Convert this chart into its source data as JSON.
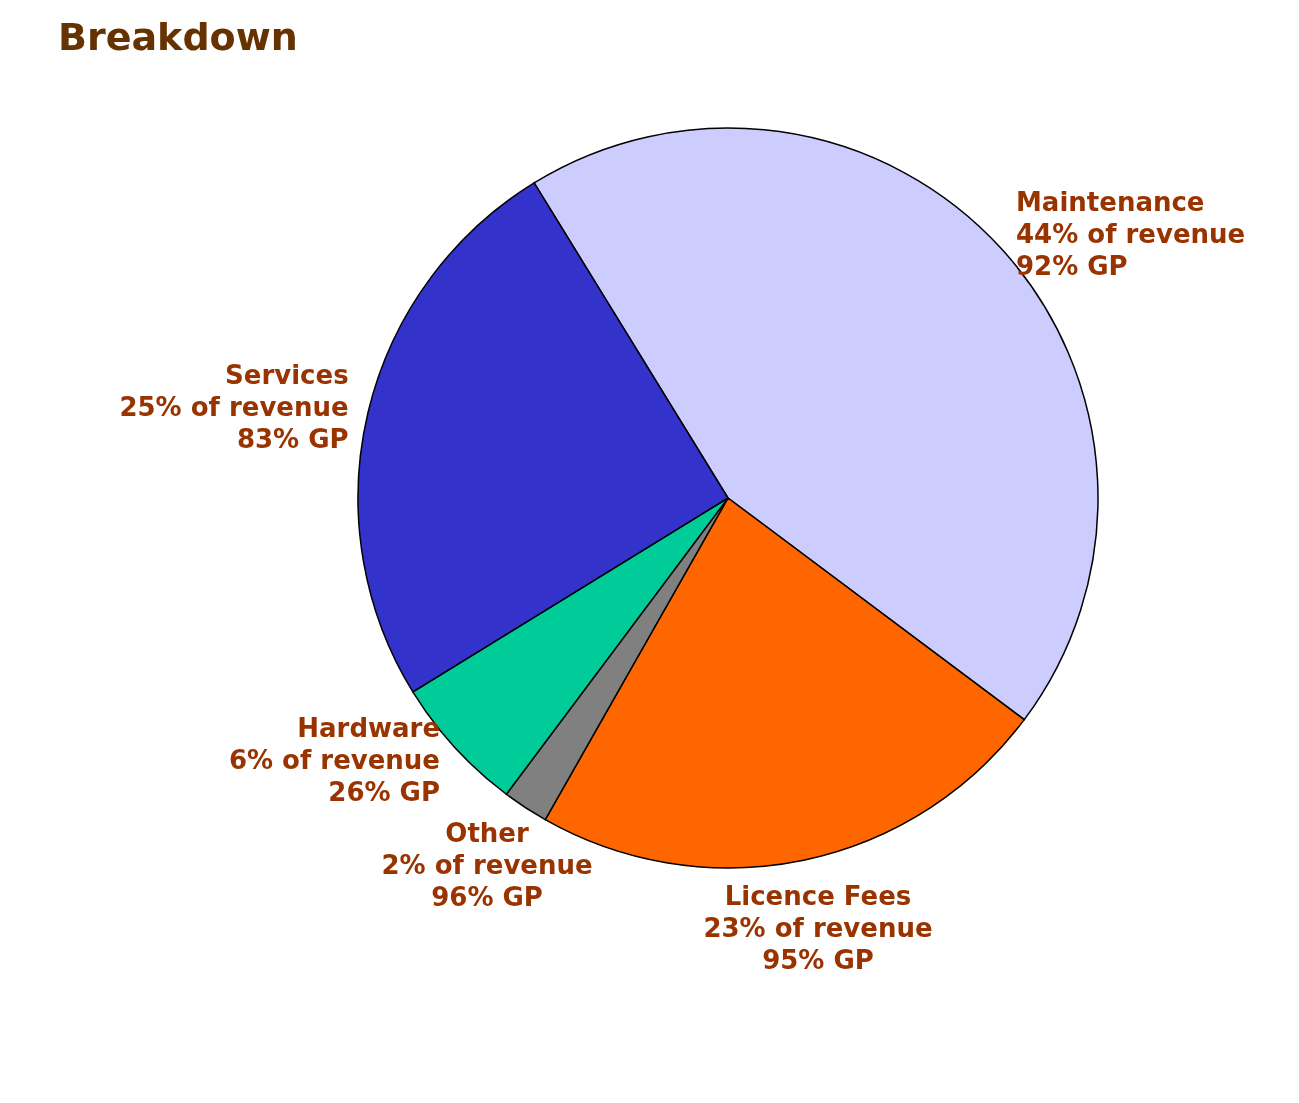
{
  "chart_data": {
    "type": "pie",
    "title": "Breakdown",
    "categories": [
      "Maintenance",
      "Licence Fees",
      "Other",
      "Hardware",
      "Services"
    ],
    "values": [
      44,
      23,
      2,
      6,
      25
    ],
    "colors": [
      "#ccccff",
      "#ff6600",
      "#808080",
      "#00cc99",
      "#3333cc"
    ],
    "value_labels": [
      "44% of revenue\n92% GP",
      "23% of revenue\n95% GP",
      "2% of revenue\n96% GP",
      "6% of revenue\n26% GP",
      "25% of revenue\n83% GP"
    ],
    "legend": false
  }
}
